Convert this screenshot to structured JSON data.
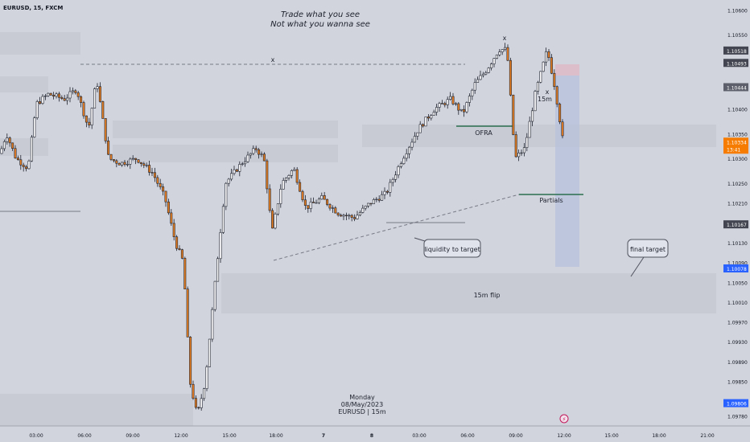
{
  "header": {
    "symbol_line": "EURUSD, 15, FXCM"
  },
  "quote": {
    "title_line1": "Trade what you see",
    "title_line2": "Not what you wanna see"
  },
  "watermark": {
    "line1": "Monday",
    "line2": "08/May/2023",
    "line3": "EURUSD | 15m"
  },
  "annotations": {
    "x_mark_1": "x",
    "x_mark_2": "x",
    "x_mark_3": "x",
    "label_15m": "15m",
    "ofra": "OFRA",
    "partials": "Partials",
    "liquidity_callout": "liquidity to target",
    "final_target_callout": "final target",
    "flip_label": "15m flip"
  },
  "axis": {
    "price_ticks": [
      "1.10600",
      "1.10550",
      "1.10444",
      "1.10400",
      "1.10350",
      "1.10300",
      "1.10250",
      "1.10210",
      "1.10130",
      "1.10090",
      "1.10050",
      "1.10010",
      "1.09970",
      "1.09930",
      "1.09890",
      "1.09850",
      "1.09780"
    ],
    "time_ticks": [
      "03:00",
      "06:00",
      "09:00",
      "12:00",
      "15:00",
      "18:00",
      "7",
      "8",
      "03:00",
      "06:00",
      "09:00",
      "12:00",
      "15:00",
      "18:00",
      "21:00"
    ]
  },
  "price_badges": [
    {
      "value": "1.10518",
      "color": "#434651"
    },
    {
      "value": "1.10493",
      "color": "#434651"
    },
    {
      "value": "1.10444",
      "color": "#5d606b"
    },
    {
      "value": "1.10334",
      "sub": "13:41",
      "color": "#f57c00"
    },
    {
      "value": "1.10167",
      "color": "#434651"
    },
    {
      "value": "1.10078",
      "color": "#2962ff"
    },
    {
      "value": "1.09806",
      "color": "#2962ff"
    }
  ],
  "colors": {
    "bull": "#ffffff",
    "bear": "#e67e22",
    "wick": "#1e222d",
    "zone": "#c3c6cf",
    "target_box": "#b7c1dd"
  },
  "chart_data": {
    "type": "candlestick",
    "symbol": "EURUSD",
    "interval": "15",
    "source": "FXCM",
    "ylim": [
      1.0976,
      1.1062
    ],
    "current_price": 1.10334,
    "levels": {
      "final_target": 1.10078,
      "partials": 1.1024,
      "ofra": 1.1036
    },
    "candles": []
  }
}
